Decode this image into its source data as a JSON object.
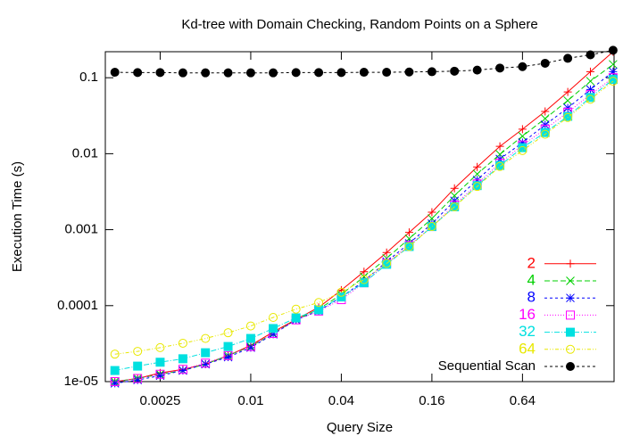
{
  "chart_data": {
    "type": "line",
    "title": "Kd-tree with Domain Checking, Random Points on a Sphere",
    "xlabel": "Query Size",
    "ylabel": "Execution Time (s)",
    "xscale": "log",
    "yscale": "log",
    "legend": "bottom right",
    "xlim": [
      0.00108,
      2.6
    ],
    "ylim": [
      1e-05,
      0.22
    ],
    "xticks": [
      0.0025,
      0.01,
      0.04,
      0.16,
      0.64
    ],
    "yticks": [
      {
        "value": 1e-05,
        "label": "1e-05"
      },
      0.0001,
      0.001,
      0.01,
      0.1
    ],
    "x": [
      0.00125,
      0.00177,
      0.0025,
      0.00354,
      0.005,
      0.00707,
      0.01,
      0.0141,
      0.02,
      0.0283,
      0.04,
      0.0566,
      0.08,
      0.113,
      0.16,
      0.226,
      0.32,
      0.453,
      0.64,
      0.905,
      1.28,
      1.81,
      2.56
    ],
    "series": [
      {
        "name": "2",
        "color": "#ff0000",
        "marker": "plus",
        "dash": "none",
        "values": [
          1e-05,
          1.1e-05,
          1.3e-05,
          1.45e-05,
          1.7e-05,
          2.2e-05,
          3e-05,
          4.5e-05,
          6.6e-05,
          9.5e-05,
          0.00016,
          0.00028,
          0.0005,
          0.00092,
          0.0017,
          0.0035,
          0.0067,
          0.0125,
          0.021,
          0.036,
          0.065,
          0.12,
          0.22
        ]
      },
      {
        "name": "4",
        "color": "#00d000",
        "marker": "cross",
        "dash": "6,3",
        "values": [
          1e-05,
          1.1e-05,
          1.25e-05,
          1.4e-05,
          1.7e-05,
          2.2e-05,
          2.9e-05,
          4.3e-05,
          6.5e-05,
          9e-05,
          0.00014,
          0.00024,
          0.00042,
          0.00076,
          0.0014,
          0.0028,
          0.0054,
          0.0098,
          0.017,
          0.029,
          0.05,
          0.09,
          0.15
        ]
      },
      {
        "name": "8",
        "color": "#0000ff",
        "marker": "star",
        "dash": "3,3",
        "values": [
          9.5e-06,
          1.05e-05,
          1.2e-05,
          1.4e-05,
          1.7e-05,
          2.1e-05,
          2.8e-05,
          4.2e-05,
          6.5e-05,
          8.5e-05,
          0.00013,
          0.00021,
          0.00038,
          0.00066,
          0.0012,
          0.0024,
          0.0045,
          0.0085,
          0.014,
          0.024,
          0.04,
          0.07,
          0.12
        ]
      },
      {
        "name": "16",
        "color": "#ff00ff",
        "marker": "square",
        "dash": "1,2",
        "values": [
          1e-05,
          1.1e-05,
          1.25e-05,
          1.45e-05,
          1.75e-05,
          2.2e-05,
          2.9e-05,
          4.3e-05,
          6.5e-05,
          8.5e-05,
          0.00012,
          0.0002,
          0.00036,
          0.00062,
          0.0011,
          0.0021,
          0.004,
          0.0075,
          0.013,
          0.021,
          0.035,
          0.06,
          0.1
        ]
      },
      {
        "name": "32",
        "color": "#00e0e0",
        "marker": "filled-square",
        "dash": "6,2,1,2",
        "values": [
          1.4e-05,
          1.6e-05,
          1.8e-05,
          2e-05,
          2.4e-05,
          2.9e-05,
          3.7e-05,
          5e-05,
          6.9e-05,
          8.8e-05,
          0.00013,
          0.0002,
          0.00035,
          0.0006,
          0.0011,
          0.002,
          0.0038,
          0.007,
          0.012,
          0.019,
          0.031,
          0.055,
          0.095
        ]
      },
      {
        "name": "64",
        "color": "#e8e800",
        "marker": "circle",
        "dash": "4,2,1,2,1,2",
        "values": [
          2.3e-05,
          2.5e-05,
          2.8e-05,
          3.2e-05,
          3.7e-05,
          4.4e-05,
          5.4e-05,
          7e-05,
          9e-05,
          0.00011,
          0.00015,
          0.00022,
          0.00036,
          0.0006,
          0.0011,
          0.002,
          0.0037,
          0.0068,
          0.011,
          0.018,
          0.03,
          0.052,
          0.09
        ]
      },
      {
        "name": "Sequential Scan",
        "color": "#000000",
        "marker": "filled-circle",
        "dash": "3,3",
        "values": [
          0.118,
          0.117,
          0.117,
          0.116,
          0.116,
          0.116,
          0.116,
          0.116,
          0.117,
          0.117,
          0.117,
          0.118,
          0.118,
          0.119,
          0.12,
          0.122,
          0.126,
          0.134,
          0.14,
          0.155,
          0.18,
          0.2,
          0.23
        ]
      }
    ]
  }
}
